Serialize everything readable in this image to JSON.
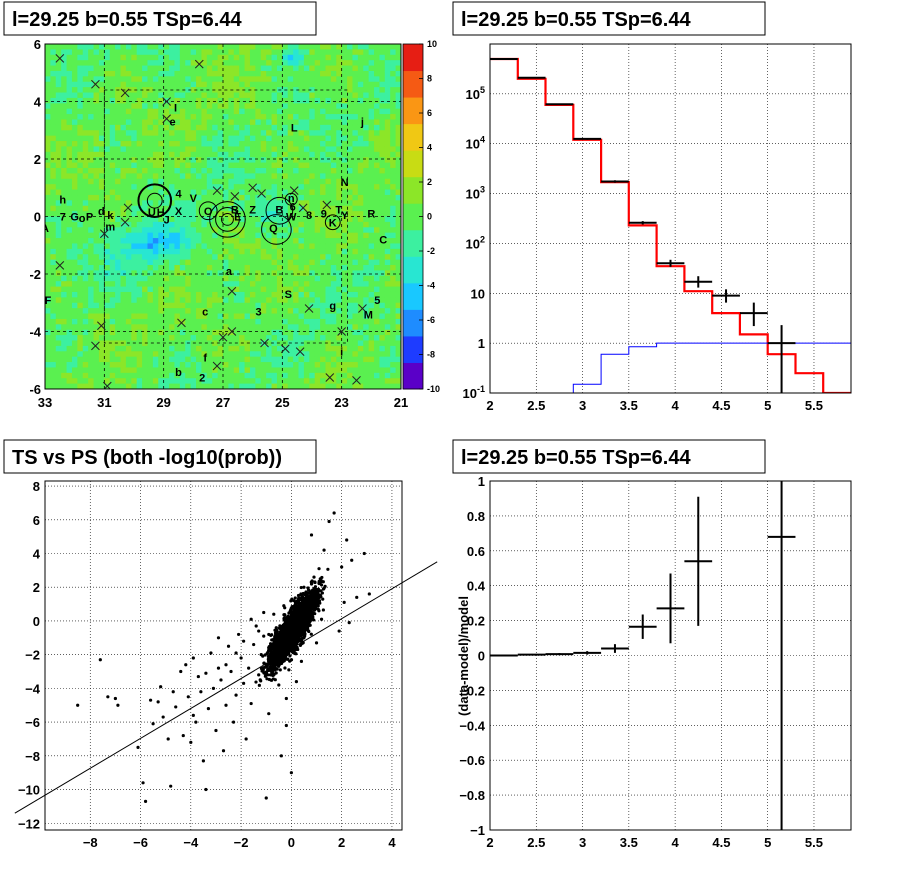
{
  "chart_data": [
    {
      "type": "heatmap",
      "title": "l=29.25 b=0.55 TSp=6.44",
      "xlim": [
        33,
        21
      ],
      "ylim": [
        -6,
        6
      ],
      "x_ticks": [
        "33",
        "31",
        "29",
        "27",
        "25",
        "23",
        "21"
      ],
      "y_ticks": [
        "6",
        "4",
        "2",
        "0",
        "-2",
        "-4",
        "-6"
      ],
      "color_scale": {
        "range": [
          -10,
          10
        ],
        "ticks": [
          "10",
          "8",
          "6",
          "4",
          "2",
          "0",
          "-2",
          "-4",
          "-6",
          "-8",
          "-10"
        ],
        "colors": [
          "#5a00c8",
          "#1e3cff",
          "#1e8cff",
          "#19c8ff",
          "#28e6d2",
          "#3cf0a0",
          "#5af050",
          "#8ce628",
          "#c8dc14",
          "#f0c814",
          "#fa9614",
          "#f55a14",
          "#e61e14"
        ]
      },
      "labels": [
        {
          "text": "I",
          "x": 28.6,
          "y": 3.8
        },
        {
          "text": "e",
          "x": 28.7,
          "y": 3.3
        },
        {
          "text": "L",
          "x": 24.6,
          "y": 3.1
        },
        {
          "text": "j",
          "x": 22.3,
          "y": 3.3
        },
        {
          "text": "N",
          "x": 22.9,
          "y": 1.2
        },
        {
          "text": "h",
          "x": 32.4,
          "y": 0.6
        },
        {
          "text": "4",
          "x": 28.5,
          "y": 0.8
        },
        {
          "text": "V",
          "x": 28.0,
          "y": 0.65
        },
        {
          "text": "X",
          "x": 28.5,
          "y": 0.2
        },
        {
          "text": "U",
          "x": 29.4,
          "y": 0.15
        },
        {
          "text": "H",
          "x": 29.1,
          "y": 0.15
        },
        {
          "text": "J",
          "x": 28.9,
          "y": -0.1
        },
        {
          "text": "7",
          "x": 32.4,
          "y": 0.0
        },
        {
          "text": "G",
          "x": 32.0,
          "y": 0.0
        },
        {
          "text": "o",
          "x": 31.75,
          "y": -0.05
        },
        {
          "text": "P",
          "x": 31.5,
          "y": 0.0
        },
        {
          "text": "d",
          "x": 31.1,
          "y": 0.2
        },
        {
          "text": "k",
          "x": 30.8,
          "y": 0.05
        },
        {
          "text": "m",
          "x": 30.8,
          "y": -0.35
        },
        {
          "text": "A",
          "x": 33.0,
          "y": -0.4
        },
        {
          "text": "O",
          "x": 27.5,
          "y": 0.2
        },
        {
          "text": "B",
          "x": 26.6,
          "y": 0.25
        },
        {
          "text": "E",
          "x": 26.5,
          "y": 0.0
        },
        {
          "text": "Z",
          "x": 26.0,
          "y": 0.25
        },
        {
          "text": "B",
          "x": 25.1,
          "y": 0.25
        },
        {
          "text": "n",
          "x": 24.7,
          "y": 0.65
        },
        {
          "text": "6",
          "x": 24.65,
          "y": 0.35
        },
        {
          "text": "W",
          "x": 24.7,
          "y": 0.0
        },
        {
          "text": "8",
          "x": 24.1,
          "y": 0.05
        },
        {
          "text": "9",
          "x": 23.6,
          "y": 0.1
        },
        {
          "text": "T",
          "x": 23.1,
          "y": 0.25
        },
        {
          "text": "K",
          "x": 23.3,
          "y": -0.2
        },
        {
          "text": "Y",
          "x": 22.9,
          "y": 0.05
        },
        {
          "text": "R",
          "x": 22.0,
          "y": 0.1
        },
        {
          "text": "Q",
          "x": 25.3,
          "y": -0.4
        },
        {
          "text": "C",
          "x": 21.6,
          "y": -0.8
        },
        {
          "text": "a",
          "x": 26.8,
          "y": -1.9
        },
        {
          "text": "F",
          "x": 32.9,
          "y": -2.9
        },
        {
          "text": "S",
          "x": 24.8,
          "y": -2.7
        },
        {
          "text": "5",
          "x": 21.8,
          "y": -2.9
        },
        {
          "text": "g",
          "x": 23.3,
          "y": -3.1
        },
        {
          "text": "c",
          "x": 27.6,
          "y": -3.3
        },
        {
          "text": "3",
          "x": 25.8,
          "y": -3.3
        },
        {
          "text": "M",
          "x": 22.1,
          "y": -3.4
        },
        {
          "text": "f",
          "x": 27.6,
          "y": -4.9
        },
        {
          "text": "b",
          "x": 28.5,
          "y": -5.4
        },
        {
          "text": "2",
          "x": 27.7,
          "y": -5.6
        },
        {
          "text": "i",
          "x": 23.0,
          "y": -4.7
        }
      ],
      "circles": [
        {
          "x": 29.3,
          "y": 0.55,
          "r": 0.55,
          "weight": 2
        },
        {
          "x": 29.3,
          "y": 0.55,
          "r": 0.25,
          "weight": 1
        },
        {
          "x": 27.5,
          "y": 0.2,
          "r": 0.3,
          "weight": 1
        },
        {
          "x": 26.85,
          "y": -0.1,
          "r": 0.6,
          "weight": 1
        },
        {
          "x": 26.85,
          "y": -0.1,
          "r": 0.4,
          "weight": 1
        },
        {
          "x": 26.85,
          "y": -0.1,
          "r": 0.2,
          "weight": 1
        },
        {
          "x": 25.1,
          "y": 0.2,
          "r": 0.45,
          "weight": 1
        },
        {
          "x": 25.2,
          "y": -0.45,
          "r": 0.5,
          "weight": 1
        },
        {
          "x": 24.7,
          "y": 0.6,
          "r": 0.2,
          "weight": 1
        },
        {
          "x": 23.3,
          "y": -0.2,
          "r": 0.25,
          "weight": 1
        }
      ],
      "crosses": [
        {
          "x": 32.5,
          "y": 5.5
        },
        {
          "x": 30.3,
          "y": 4.3
        },
        {
          "x": 27.8,
          "y": 5.3
        },
        {
          "x": 28.9,
          "y": 3.4
        },
        {
          "x": 28.9,
          "y": 4.0
        },
        {
          "x": 31.3,
          "y": 4.6
        },
        {
          "x": 31.0,
          "y": -0.6
        },
        {
          "x": 30.2,
          "y": 0.3
        },
        {
          "x": 30.3,
          "y": -0.2
        },
        {
          "x": 26.6,
          "y": 0.7
        },
        {
          "x": 26.0,
          "y": 1.0
        },
        {
          "x": 25.7,
          "y": 0.8
        },
        {
          "x": 24.6,
          "y": 0.9
        },
        {
          "x": 24.3,
          "y": 0.3
        },
        {
          "x": 27.2,
          "y": 0.9
        },
        {
          "x": 23.5,
          "y": 0.4
        },
        {
          "x": 32.5,
          "y": -1.7
        },
        {
          "x": 26.7,
          "y": -2.6
        },
        {
          "x": 28.4,
          "y": -3.7
        },
        {
          "x": 27.0,
          "y": -4.2
        },
        {
          "x": 26.7,
          "y": -4.0
        },
        {
          "x": 25.6,
          "y": -4.4
        },
        {
          "x": 24.9,
          "y": -4.6
        },
        {
          "x": 24.4,
          "y": -4.7
        },
        {
          "x": 24.1,
          "y": -3.2
        },
        {
          "x": 23.0,
          "y": -4.0
        },
        {
          "x": 31.1,
          "y": -3.8
        },
        {
          "x": 30.9,
          "y": -5.9
        },
        {
          "x": 31.3,
          "y": -4.5
        },
        {
          "x": 27.2,
          "y": -5.2
        },
        {
          "x": 23.4,
          "y": -5.6
        },
        {
          "x": 22.5,
          "y": -5.7
        },
        {
          "x": 22.3,
          "y": -3.2
        }
      ]
    },
    {
      "type": "line",
      "title": "l=29.25 b=0.55 TSp=6.44",
      "x_scale": "linear",
      "y_scale": "log",
      "xlim": [
        2,
        5.9
      ],
      "ylim": [
        0.1,
        1000000
      ],
      "grid": true,
      "x_ticks": [
        "2",
        "2.5",
        "3",
        "3.5",
        "4",
        "4.5",
        "5",
        "5.5"
      ],
      "y_ticks": [
        {
          "base": "10",
          "exp": "5",
          "value": 100000
        },
        {
          "base": "10",
          "exp": "4",
          "value": 10000
        },
        {
          "base": "10",
          "exp": "3",
          "value": 1000
        },
        {
          "base": "10",
          "exp": "2",
          "value": 100
        },
        {
          "base": "10",
          "exp": "",
          "value": 10
        },
        {
          "base": "1",
          "exp": "",
          "value": 1
        },
        {
          "base": "10",
          "exp": "-1",
          "value": 0.1
        }
      ],
      "bin_edges": [
        2.0,
        2.3,
        2.6,
        2.9,
        3.2,
        3.5,
        3.8,
        4.1,
        4.4,
        4.7,
        5.0,
        5.3,
        5.6,
        5.9
      ],
      "series": [
        {
          "color": "#ff0000",
          "values": [
            500000,
            200000,
            60000,
            12000,
            1700,
            230,
            35,
            11,
            4,
            1.5,
            0.6,
            0.25,
            0.1
          ]
        },
        {
          "color": "#0000ff",
          "values": [
            0.1,
            0.1,
            0.1,
            0.15,
            0.6,
            0.85,
            1.0,
            1.0,
            1.0,
            1.0,
            1.0,
            1.0,
            1.0
          ]
        }
      ],
      "points": [
        {
          "x": 2.15,
          "y": 500000,
          "ylo": 500000,
          "yhi": 500000
        },
        {
          "x": 2.45,
          "y": 210000,
          "ylo": 210000,
          "yhi": 210000
        },
        {
          "x": 2.75,
          "y": 62000,
          "ylo": 62000,
          "yhi": 62000
        },
        {
          "x": 3.05,
          "y": 12500,
          "ylo": 12000,
          "yhi": 13000
        },
        {
          "x": 3.35,
          "y": 1750,
          "ylo": 1650,
          "yhi": 1850
        },
        {
          "x": 3.65,
          "y": 260,
          "ylo": 240,
          "yhi": 280
        },
        {
          "x": 3.95,
          "y": 40,
          "ylo": 34,
          "yhi": 47
        },
        {
          "x": 4.25,
          "y": 17,
          "ylo": 13,
          "yhi": 22
        },
        {
          "x": 4.55,
          "y": 9,
          "ylo": 6.5,
          "yhi": 12
        },
        {
          "x": 4.85,
          "y": 4,
          "ylo": 2.2,
          "yhi": 6.5
        },
        {
          "x": 5.15,
          "y": 1,
          "ylo": 0.1,
          "yhi": 2.3
        }
      ]
    },
    {
      "type": "scatter",
      "title": "TS vs PS (both -log10(prob))",
      "xlim": [
        -9.8,
        4.4
      ],
      "ylim": [
        -12.4,
        8.3
      ],
      "grid": true,
      "x_ticks": [
        "−8",
        "−6",
        "−4",
        "−2",
        "0",
        "2",
        "4"
      ],
      "y_ticks": [
        "8",
        "6",
        "4",
        "2",
        "0",
        "−2",
        "−4",
        "−6",
        "−8",
        "−10",
        "−12"
      ],
      "line": {
        "x1": -11.0,
        "y1": -11.4,
        "x2": 5.8,
        "y2": 3.2
      },
      "points": [
        [
          -8.5,
          -5.0
        ],
        [
          -7.3,
          -4.5
        ],
        [
          -7.0,
          -4.6
        ],
        [
          -6.9,
          -5.0
        ],
        [
          -7.6,
          -2.3
        ],
        [
          -6.1,
          -7.5
        ],
        [
          -5.9,
          -9.6
        ],
        [
          -5.8,
          -10.7
        ],
        [
          -5.6,
          -4.7
        ],
        [
          -5.5,
          -6.1
        ],
        [
          -5.3,
          -4.8
        ],
        [
          -5.1,
          -5.7
        ],
        [
          -4.9,
          -7.0
        ],
        [
          -4.8,
          -9.8
        ],
        [
          -4.6,
          -5.1
        ],
        [
          -4.4,
          -3.0
        ],
        [
          -4.3,
          -6.8
        ],
        [
          -4.2,
          -2.6
        ],
        [
          -4.1,
          -4.5
        ],
        [
          -4.0,
          -7.2
        ],
        [
          -3.9,
          -5.6
        ],
        [
          -3.8,
          -6.0
        ],
        [
          -3.7,
          -3.3
        ],
        [
          -3.6,
          -4.2
        ],
        [
          -3.5,
          -8.3
        ],
        [
          -3.4,
          -10.0
        ],
        [
          -3.3,
          -5.2
        ],
        [
          -3.2,
          -1.9
        ],
        [
          -3.1,
          -4.0
        ],
        [
          -3.0,
          -6.5
        ],
        [
          -2.9,
          -2.8
        ],
        [
          -2.8,
          -3.5
        ],
        [
          -2.7,
          -7.7
        ],
        [
          -2.6,
          -5.0
        ],
        [
          -2.5,
          -1.5
        ],
        [
          -2.4,
          -3.0
        ],
        [
          -2.3,
          -6.0
        ],
        [
          -2.2,
          -4.4
        ],
        [
          -2.1,
          -0.8
        ],
        [
          -2.0,
          -2.2
        ],
        [
          -1.9,
          -3.7
        ],
        [
          -1.8,
          -7.0
        ],
        [
          -1.7,
          -2.8
        ],
        [
          -1.6,
          -4.9
        ],
        [
          -1.5,
          -1.4
        ],
        [
          -1.4,
          -0.3
        ],
        [
          -1.3,
          -3.2
        ],
        [
          -1.2,
          -2.0
        ],
        [
          -1.1,
          -0.9
        ],
        [
          -1.0,
          -10.5
        ],
        [
          -0.9,
          -5.5
        ],
        [
          -0.8,
          -1.6
        ],
        [
          -0.7,
          -2.5
        ],
        [
          -0.6,
          -0.4
        ],
        [
          -0.5,
          -3.8
        ],
        [
          -0.4,
          -8.0
        ],
        [
          -0.3,
          -1.2
        ],
        [
          -0.2,
          -6.2
        ],
        [
          -0.1,
          -2.9
        ],
        [
          0.0,
          -9.0
        ],
        [
          -5.2,
          -3.9
        ],
        [
          -4.7,
          -4.2
        ],
        [
          -3.9,
          -2.2
        ],
        [
          -3.4,
          -3.1
        ],
        [
          -2.9,
          -1.0
        ],
        [
          -2.6,
          -2.6
        ],
        [
          -2.2,
          -1.9
        ],
        [
          -1.9,
          -1.2
        ],
        [
          -1.6,
          0.1
        ],
        [
          -1.3,
          -0.6
        ],
        [
          -1.1,
          0.5
        ],
        [
          -0.9,
          -0.8
        ],
        [
          -0.7,
          0.4
        ],
        [
          -0.5,
          -1.9
        ],
        [
          -0.3,
          0.9
        ],
        [
          -0.1,
          -0.5
        ],
        [
          0.1,
          1.2
        ],
        [
          0.3,
          0.4
        ],
        [
          0.5,
          2.0
        ],
        [
          0.7,
          1.3
        ],
        [
          0.9,
          2.6
        ],
        [
          1.1,
          3.1
        ],
        [
          1.3,
          4.2
        ],
        [
          1.5,
          5.9
        ],
        [
          1.7,
          6.4
        ],
        [
          2.0,
          3.2
        ],
        [
          2.2,
          4.8
        ],
        [
          2.4,
          3.6
        ],
        [
          2.6,
          1.4
        ],
        [
          2.9,
          4.0
        ],
        [
          3.1,
          1.6
        ],
        [
          1.9,
          -0.6
        ],
        [
          2.1,
          1.1
        ],
        [
          2.3,
          -0.1
        ],
        [
          1.0,
          -1.3
        ],
        [
          0.4,
          -2.4
        ],
        [
          0.2,
          -3.6
        ],
        [
          -0.2,
          -4.6
        ],
        [
          0.8,
          5.1
        ],
        [
          1.2,
          0.1
        ]
      ]
    },
    {
      "type": "line",
      "title": "l=29.25 b=0.55 TSp=6.44",
      "ylabel": "(data-model)/model",
      "xlim": [
        2,
        5.9
      ],
      "ylim": [
        -1,
        1
      ],
      "grid": true,
      "x_ticks": [
        "2",
        "2.5",
        "3",
        "3.5",
        "4",
        "4.5",
        "5",
        "5.5"
      ],
      "y_ticks": [
        "1",
        "0.8",
        "0.6",
        "0.4",
        "0.2",
        "0",
        "−0.2",
        "−0.4",
        "−0.6",
        "−0.8",
        "−1"
      ],
      "points": [
        {
          "x": 2.15,
          "xerr": 0.15,
          "y": 0.0,
          "yerr": 0.004
        },
        {
          "x": 2.45,
          "xerr": 0.15,
          "y": 0.005,
          "yerr": 0.004
        },
        {
          "x": 2.75,
          "xerr": 0.15,
          "y": 0.008,
          "yerr": 0.006
        },
        {
          "x": 3.05,
          "xerr": 0.15,
          "y": 0.015,
          "yerr": 0.01
        },
        {
          "x": 3.35,
          "xerr": 0.15,
          "y": 0.04,
          "yerr": 0.025
        },
        {
          "x": 3.65,
          "xerr": 0.15,
          "y": 0.165,
          "yerr": 0.07
        },
        {
          "x": 3.95,
          "xerr": 0.15,
          "y": 0.27,
          "yerr": 0.2
        },
        {
          "x": 4.25,
          "xerr": 0.15,
          "y": 0.54,
          "yerr": 0.37
        },
        {
          "x": 5.15,
          "xerr": 0.15,
          "y": 0.68,
          "ylo": -1.0,
          "yhi": 1.0
        }
      ]
    }
  ]
}
